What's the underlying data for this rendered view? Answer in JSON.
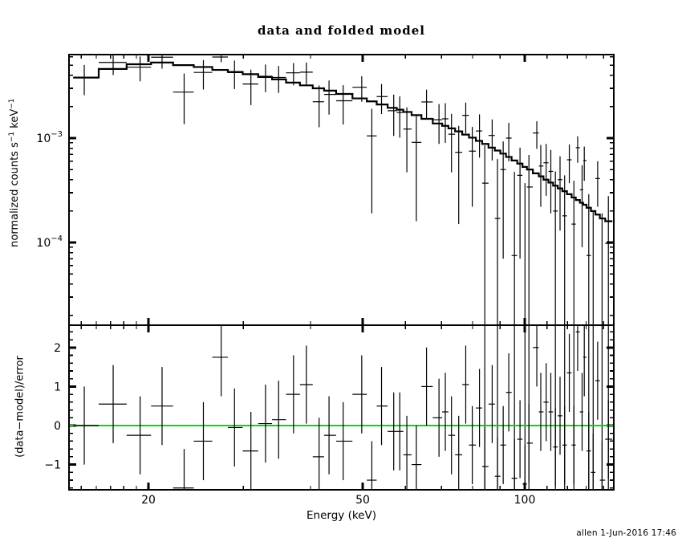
{
  "title": "data and folded model",
  "footer": {
    "credit": "allen  1-Jun-2016 17:46"
  },
  "colors": {
    "foreground": "#000000",
    "background": "#ffffff",
    "zero_line_green": "#00dd00"
  },
  "axes": {
    "x_label": "Energy (keV)",
    "x_scale": "log",
    "x_range_kev": [
      14.25,
      146.4
    ],
    "x_major_ticks": [
      20,
      50,
      100
    ],
    "x_major_tick_labels": [
      "20",
      "50",
      "100"
    ],
    "x_minor_ticks": [
      15,
      16,
      17,
      18,
      19,
      30,
      40,
      60,
      70,
      80,
      90,
      110,
      120,
      130,
      140
    ],
    "top_y_label": {
      "pre": "normalized counts s",
      "sup1": "−1",
      "mid": " keV",
      "sup2": "−1"
    },
    "top_y_scale": "log",
    "top_y_range": [
      1.6e-05,
      0.0063
    ],
    "top_y_major_ticks": [
      0.001,
      0.0001
    ],
    "top_y_major_tick_labels": [
      {
        "base": "10",
        "exp": "−3"
      },
      {
        "base": "10",
        "exp": "−4"
      }
    ],
    "top_y_minor_ticks": [
      0.006,
      0.005,
      0.004,
      0.003,
      0.002,
      0.0009,
      0.0008,
      0.0007,
      0.0006,
      0.0005,
      0.0004,
      0.0003,
      0.0002,
      9e-05,
      8e-05,
      7e-05,
      6e-05,
      5e-05,
      4e-05,
      3e-05,
      2e-05
    ],
    "bottom_y_label": "(data−model)/error",
    "bottom_y_range": [
      -1.65,
      2.57
    ],
    "bottom_y_major_ticks": [
      2,
      1,
      0,
      -1
    ],
    "bottom_y_major_tick_labels": [
      "2",
      "1",
      "0",
      "−1"
    ],
    "bottom_y_minor_ticks": [
      2.4,
      2.2,
      1.8,
      1.6,
      1.4,
      1.2,
      0.8,
      0.6,
      0.4,
      0.2,
      -0.2,
      -0.4,
      -0.6,
      -0.8,
      -1.2,
      -1.4,
      -1.6
    ]
  },
  "chart_data": [
    {
      "type": "scatter",
      "panel": "top",
      "title": "data and folded model",
      "xlabel": "Energy (keV)",
      "ylabel": "normalized counts s^-1 keV^-1",
      "x_scale": "log",
      "y_scale": "log",
      "xlim": [
        14.25,
        146.4
      ],
      "ylim": [
        1.6e-05,
        0.0063
      ],
      "bin_edge_first_kev": 14.5,
      "bin_edge_last_kev": 145.5,
      "x": [
        15.2,
        17.2,
        19.3,
        21.2,
        23.3,
        25.3,
        27.3,
        28.9,
        31.0,
        33.0,
        34.9,
        37.2,
        39.3,
        41.5,
        43.3,
        46.0,
        49.8,
        52.0,
        54.2,
        57.1,
        58.6,
        60.4,
        62.9,
        65.7,
        69.3,
        71.2,
        73.1,
        75.4,
        77.7,
        79.9,
        82.4,
        84.3,
        87.0,
        89.0,
        91.2,
        93.4,
        95.7,
        98.0,
        100.1,
        101.8,
        105.3,
        107.1,
        109.6,
        111.8,
        114.0,
        116.3,
        118.6,
        121.0,
        123.4,
        125.4,
        127.8,
        129.0,
        131.5,
        134.0,
        136.6,
        139.2,
        143.0
      ],
      "series": [
        {
          "name": "data",
          "style": "cross-with-errorbars",
          "y": [
            0.0038,
            0.00531,
            0.00478,
            0.00596,
            0.00276,
            0.00426,
            0.00647,
            0.00424,
            0.0033,
            0.00391,
            0.00381,
            0.00422,
            0.00428,
            0.00223,
            0.00262,
            0.00228,
            0.00307,
            0.00105,
            0.0025,
            0.00183,
            0.00176,
            0.00122,
            0.00091,
            0.00222,
            0.0015,
            0.00153,
            0.00109,
            0.00073,
            0.00165,
            0.00075,
            0.00117,
            0.00037,
            0.00106,
            0.00017,
            0.0005,
            0.001,
            7.5e-05,
            0.00044,
            0,
            0.00034,
            0.00112,
            0.00054,
            0.00058,
            0.00048,
            0.0002,
            0.0004,
            0.00018,
            0.00062,
            0.00015,
            0.00081,
            0.00032,
            0.00061,
            7.5e-05,
            0,
            0.00041,
            0,
            9.8e-05
          ],
          "yerr": [
            0.00122,
            0.00129,
            0.00128,
            0.00133,
            0.0014,
            0.00134,
            0.00113,
            0.00129,
            0.00123,
            0.00116,
            0.0011,
            0.00102,
            0.00102,
            0.00096,
            0.00094,
            0.00093,
            0.00084,
            0.00086,
            0.0008,
            0.00078,
            0.00075,
            0.00075,
            0.00075,
            0.00069,
            0.00062,
            0.00063,
            0.00062,
            0.00058,
            0.00054,
            0.00053,
            0.00052,
            0.00048,
            0.00045,
            0.00046,
            0.00043,
            0.0004,
            0.0004,
            0.00037,
            0.00037,
            0.00035,
            0.00033,
            0.00032,
            0.0003,
            0.00029,
            0.00028,
            0.00027,
            0.00026,
            0.00025,
            0.00024,
            0.00023,
            0.00023,
            0.00022,
            0.000215,
            0.0002,
            0.00019,
            0.00019,
            0.00018
          ]
        },
        {
          "name": "folded model",
          "style": "step-histogram",
          "y": [
            0.0038,
            0.0046,
            0.0051,
            0.0053,
            0.005,
            0.0048,
            0.0045,
            0.0043,
            0.0041,
            0.00385,
            0.00365,
            0.0034,
            0.0032,
            0.003,
            0.00285,
            0.00265,
            0.0024,
            0.00225,
            0.0021,
            0.00195,
            0.00187,
            0.00178,
            0.00166,
            0.00153,
            0.00138,
            0.00131,
            0.00124,
            0.00116,
            0.00108,
            0.00101,
            0.00094,
            0.00088,
            0.00081,
            0.00076,
            0.00071,
            0.00066,
            0.00061,
            0.00057,
            0.00053,
            0.0005,
            0.00046,
            0.00043,
            0.0004,
            0.000375,
            0.00035,
            0.00033,
            0.00031,
            0.00029,
            0.00027,
            0.000255,
            0.00024,
            0.00023,
            0.000215,
            0.0002,
            0.000185,
            0.00017,
            0.00016
          ]
        }
      ]
    },
    {
      "type": "scatter",
      "panel": "bottom",
      "ylabel": "(data-model)/error",
      "x_scale": "log",
      "xlim": [
        14.25,
        146.4
      ],
      "ylim": [
        -1.65,
        2.57
      ],
      "zero_line": true,
      "x": [
        15.2,
        17.2,
        19.3,
        21.2,
        23.3,
        25.3,
        27.3,
        28.9,
        31.0,
        33.0,
        34.9,
        37.2,
        39.3,
        41.5,
        43.3,
        46.0,
        49.8,
        52.0,
        54.2,
        57.1,
        58.6,
        60.4,
        62.9,
        65.7,
        69.3,
        71.2,
        73.1,
        75.4,
        77.7,
        79.9,
        82.4,
        84.3,
        87.0,
        89.0,
        91.2,
        93.4,
        95.7,
        98.0,
        100.1,
        101.8,
        105.3,
        107.1,
        109.6,
        111.8,
        114.0,
        116.3,
        118.6,
        121.0,
        123.4,
        125.4,
        127.8,
        129.0,
        131.5,
        134.0,
        136.6,
        139.2,
        143.0
      ],
      "y": [
        0.0,
        0.55,
        -0.25,
        0.5,
        -1.6,
        -0.4,
        1.75,
        -0.05,
        -0.65,
        0.05,
        0.15,
        0.8,
        1.05,
        -0.8,
        -0.25,
        -0.4,
        0.8,
        -1.4,
        0.5,
        -0.15,
        -0.15,
        -0.75,
        -1.0,
        1.0,
        0.2,
        0.35,
        -0.25,
        -0.75,
        1.05,
        -0.5,
        0.45,
        -1.05,
        0.55,
        -1.3,
        -0.5,
        0.85,
        -1.35,
        -0.35,
        -1.5,
        -0.45,
        2.0,
        0.35,
        0.6,
        0.35,
        -0.55,
        0.25,
        -0.5,
        1.35,
        -0.5,
        2.4,
        0.35,
        1.75,
        -0.65,
        -1.2,
        1.15,
        -1.4,
        -0.35
      ],
      "yerr_per_point": 1
    }
  ]
}
